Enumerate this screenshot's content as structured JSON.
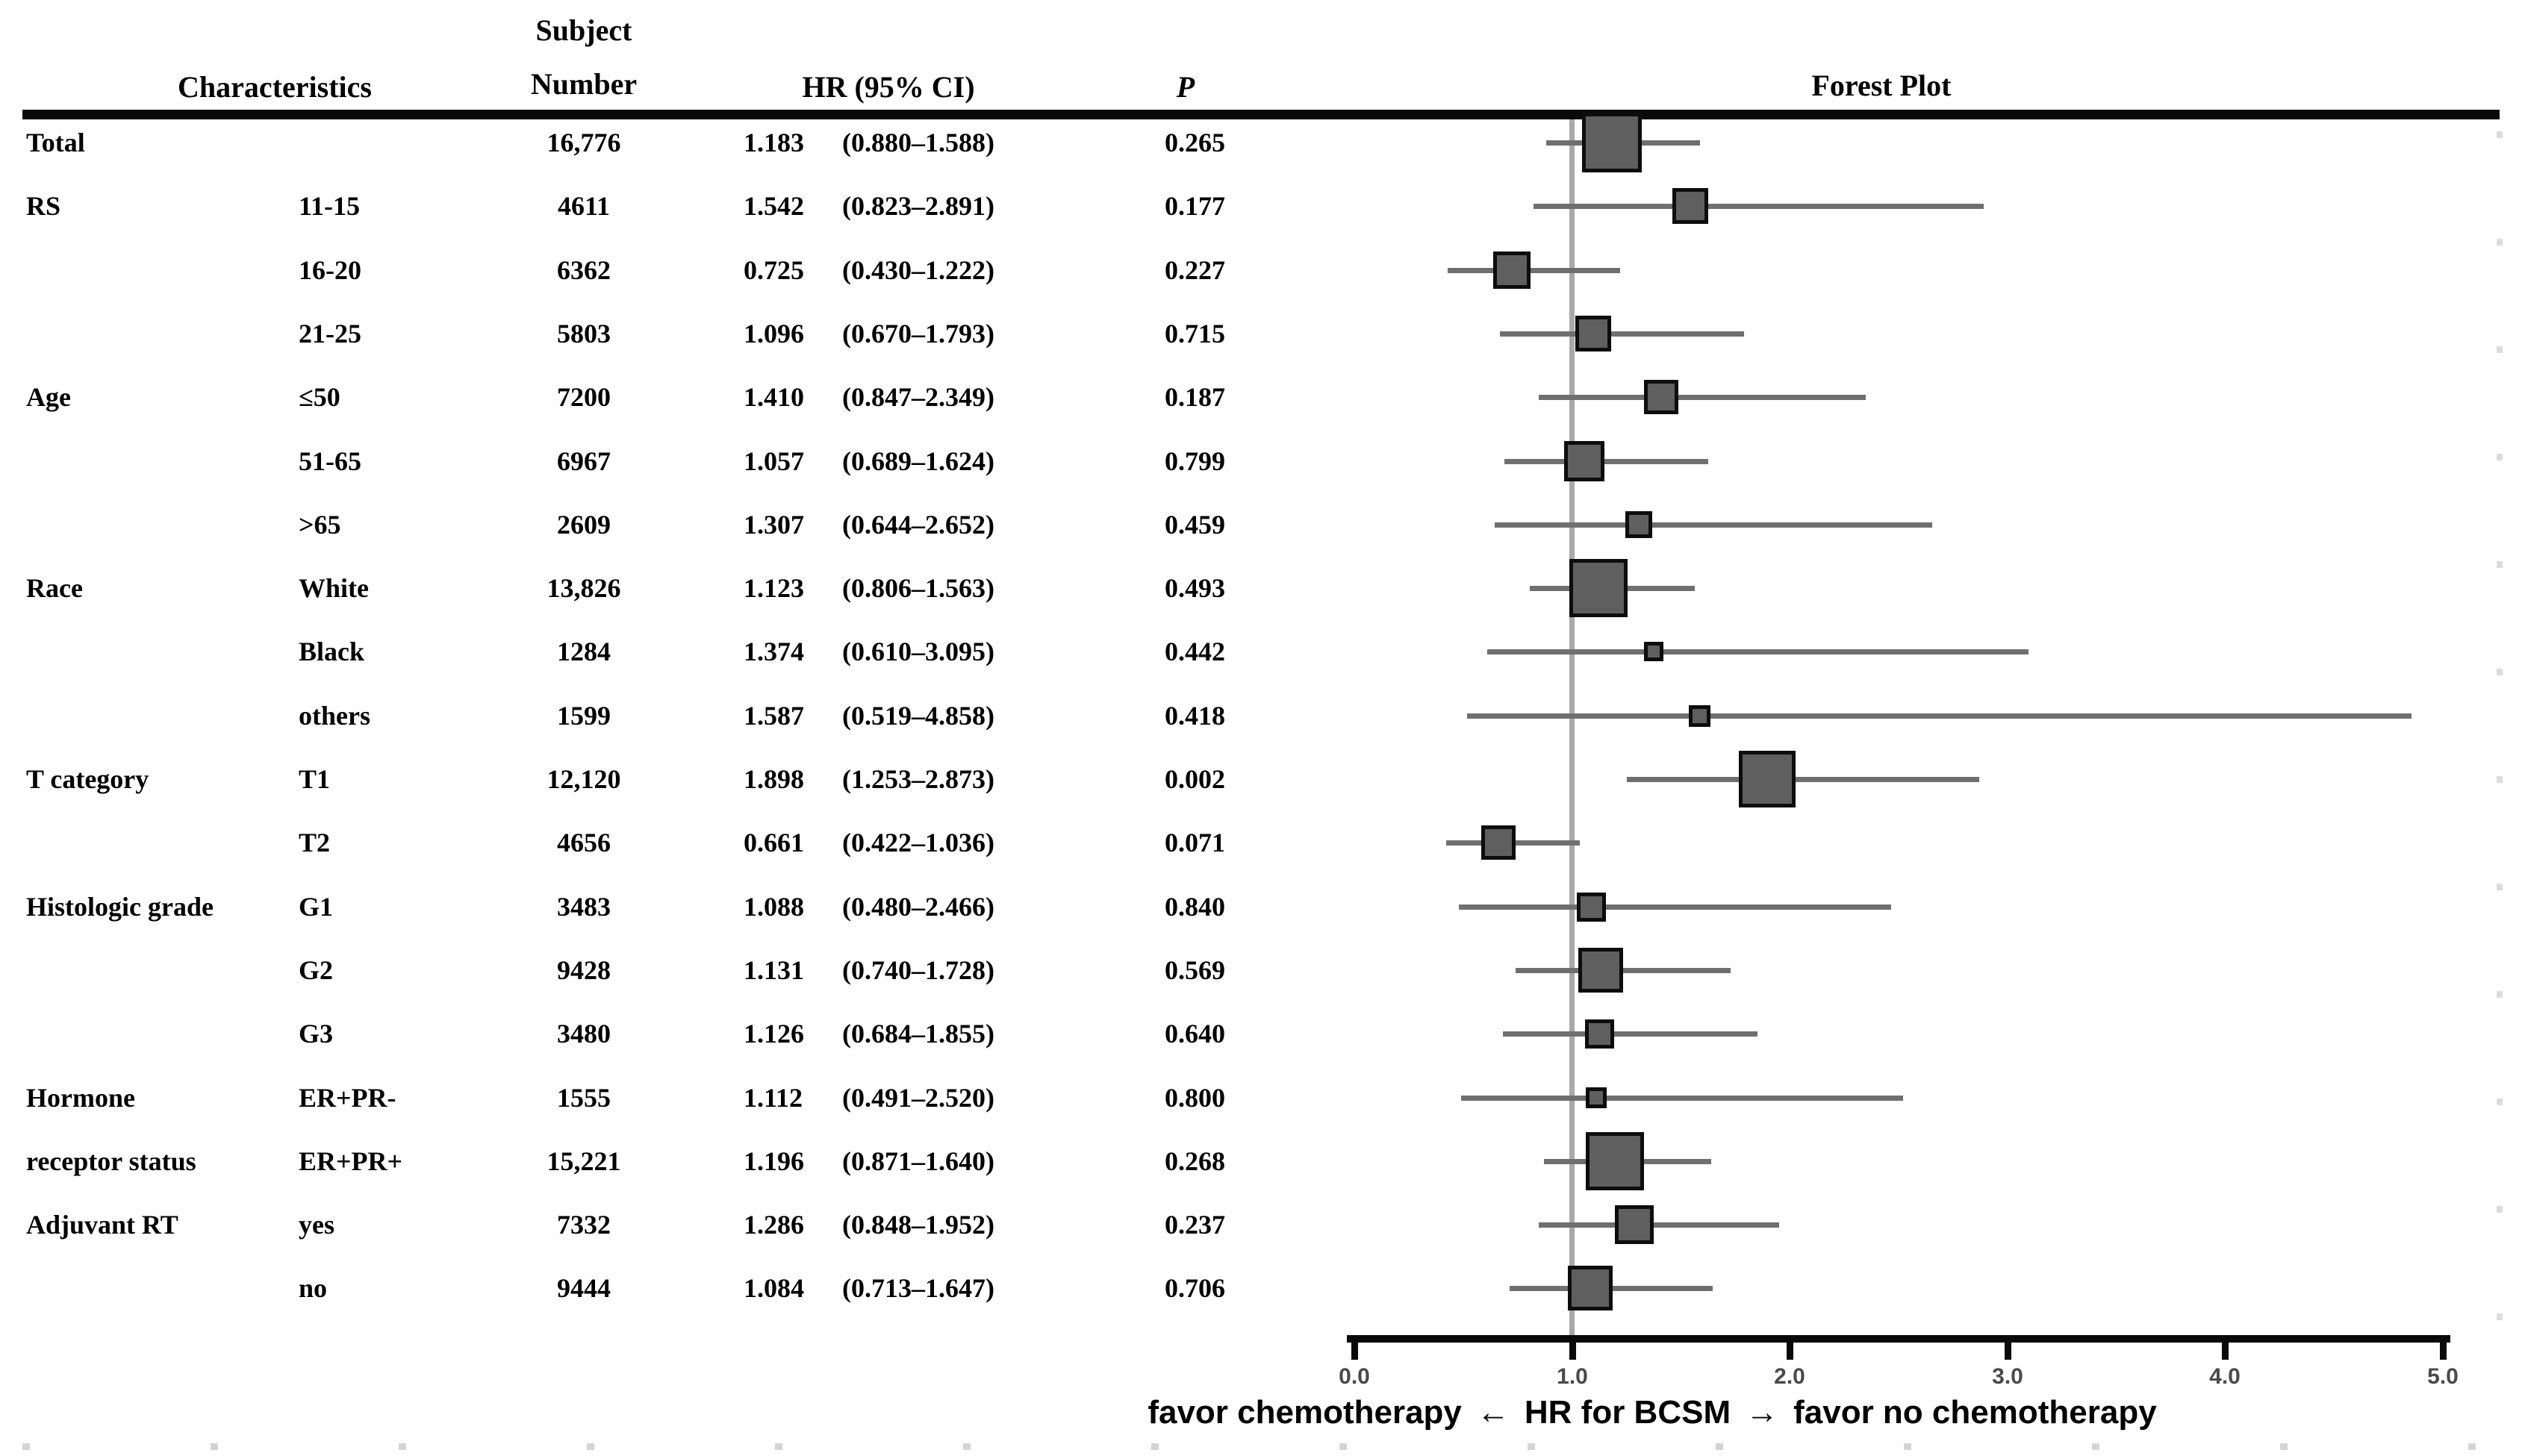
{
  "table": {
    "headers": {
      "characteristics": "Characteristics",
      "subject_line1": "Subject",
      "subject_line2": "Number",
      "hr_ci": "HR (95% CI)",
      "p": "P",
      "forest_plot": "Forest Plot"
    }
  },
  "axis": {
    "tick_labels": [
      "0.0",
      "1.0",
      "2.0",
      "3.0",
      "4.0",
      "5.0"
    ],
    "tick_values": [
      0,
      1,
      2,
      3,
      4,
      5
    ],
    "min": 0,
    "max": 5,
    "reference_value": 1.0
  },
  "footer": {
    "left": "favor chemotherapy",
    "arrow_left": "←",
    "center": "HR for BCSM",
    "arrow_right": "→",
    "right": "favor no chemotherapy"
  },
  "colors": {
    "marker_fill": "#5f5f5f",
    "marker_border": "#0d0d0d",
    "whisker": "#6f6f6f",
    "reference_line": "#a9a9a9",
    "axis": "#0a0a0a",
    "text": "#000000",
    "tick_label": "#4a4a4a"
  },
  "chart_data": {
    "type": "scatter",
    "subtype": "forest-plot",
    "title": "Forest Plot",
    "xlabel": "favor chemotherapy ← HR for BCSM → favor no chemotherapy",
    "x_range": [
      0,
      5
    ],
    "reference_line": 1.0,
    "grid": false,
    "columns": [
      "Characteristics",
      "Subject Number",
      "HR (95% CI)",
      "P"
    ],
    "points": [
      {
        "group": "Total",
        "label": "",
        "n": "16,776",
        "hr": 1.183,
        "lo": 0.88,
        "hi": 1.588,
        "p": "0.265",
        "marker_px": 80
      },
      {
        "group": "RS",
        "label": "11-15",
        "n": "4611",
        "hr": 1.542,
        "lo": 0.823,
        "hi": 2.891,
        "p": "0.177",
        "marker_px": 48
      },
      {
        "group": "",
        "label": "16-20",
        "n": "6362",
        "hr": 0.725,
        "lo": 0.43,
        "hi": 1.222,
        "p": "0.227",
        "marker_px": 50
      },
      {
        "group": "",
        "label": "21-25",
        "n": "5803",
        "hr": 1.096,
        "lo": 0.67,
        "hi": 1.793,
        "p": "0.715",
        "marker_px": 48
      },
      {
        "group": "Age",
        "label": "≤50",
        "n": "7200",
        "hr": 1.41,
        "lo": 0.847,
        "hi": 2.349,
        "p": "0.187",
        "marker_px": 46
      },
      {
        "group": "",
        "label": "51-65",
        "n": "6967",
        "hr": 1.057,
        "lo": 0.689,
        "hi": 1.624,
        "p": "0.799",
        "marker_px": 54
      },
      {
        "group": "",
        "label": ">65",
        "n": "2609",
        "hr": 1.307,
        "lo": 0.644,
        "hi": 2.652,
        "p": "0.459",
        "marker_px": 36
      },
      {
        "group": "Race",
        "label": "White",
        "n": "13,826",
        "hr": 1.123,
        "lo": 0.806,
        "hi": 1.563,
        "p": "0.493",
        "marker_px": 78
      },
      {
        "group": "",
        "label": "Black",
        "n": "1284",
        "hr": 1.374,
        "lo": 0.61,
        "hi": 3.095,
        "p": "0.442",
        "marker_px": 26
      },
      {
        "group": "",
        "label": "others",
        "n": "1599",
        "hr": 1.587,
        "lo": 0.519,
        "hi": 4.858,
        "p": "0.418",
        "marker_px": 29
      },
      {
        "group": "T category",
        "label": "T1",
        "n": "12,120",
        "hr": 1.898,
        "lo": 1.253,
        "hi": 2.873,
        "p": "0.002",
        "marker_px": 76
      },
      {
        "group": "",
        "label": "T2",
        "n": "4656",
        "hr": 0.661,
        "lo": 0.422,
        "hi": 1.036,
        "p": "0.071",
        "marker_px": 46
      },
      {
        "group": "Histologic grade",
        "label": "G1",
        "n": "3483",
        "hr": 1.088,
        "lo": 0.48,
        "hi": 2.466,
        "p": "0.840",
        "marker_px": 39
      },
      {
        "group": "",
        "label": "G2",
        "n": "9428",
        "hr": 1.131,
        "lo": 0.74,
        "hi": 1.728,
        "p": "0.569",
        "marker_px": 60
      },
      {
        "group": "",
        "label": "G3",
        "n": "3480",
        "hr": 1.126,
        "lo": 0.684,
        "hi": 1.855,
        "p": "0.640",
        "marker_px": 39
      },
      {
        "group": "Hormone",
        "label": "ER+PR-",
        "n": "1555",
        "hr": 1.112,
        "lo": 0.491,
        "hi": 2.52,
        "p": "0.800",
        "marker_px": 28
      },
      {
        "group": "receptor status",
        "label": "ER+PR+",
        "n": "15,221",
        "hr": 1.196,
        "lo": 0.871,
        "hi": 1.64,
        "p": "0.268",
        "marker_px": 78
      },
      {
        "group": "Adjuvant RT",
        "label": "yes",
        "n": "7332",
        "hr": 1.286,
        "lo": 0.848,
        "hi": 1.952,
        "p": "0.237",
        "marker_px": 52
      },
      {
        "group": "",
        "label": "no",
        "n": "9444",
        "hr": 1.084,
        "lo": 0.713,
        "hi": 1.647,
        "p": "0.706",
        "marker_px": 60
      }
    ]
  }
}
